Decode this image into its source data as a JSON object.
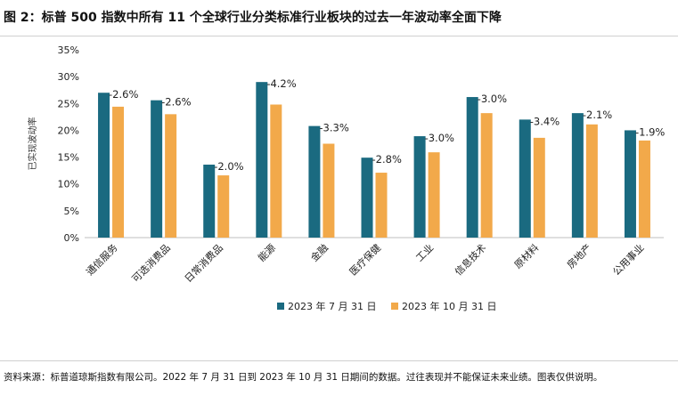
{
  "title": "图 2：标普 500 指数中所有 11 个全球行业分类标准行业板块的过去一年波动率全面下降",
  "source": "资料来源：标普道琼斯指数有限公司。2022 年 7 月 31 日到 2023 年 10 月 31 日期间的数据。过往表现并不能保证未来业绩。图表仅供说明。",
  "colors": {
    "series1": "#1a6a80",
    "series2": "#f2a94a",
    "axis": "#bfbfbf"
  },
  "chart_data": {
    "type": "bar",
    "ylabel": "已实现波动率",
    "ylim": [
      0,
      35
    ],
    "yticks": [
      0,
      5,
      10,
      15,
      20,
      25,
      30,
      35
    ],
    "ytick_labels": [
      "0%",
      "5%",
      "10%",
      "15%",
      "20%",
      "25%",
      "30%",
      "35%"
    ],
    "legend_position": "bottom",
    "grid": false,
    "categories": [
      "通信服务",
      "可选消费品",
      "日常消费品",
      "能源",
      "金融",
      "医疗保健",
      "工业",
      "信息技术",
      "原材料",
      "房地产",
      "公用事业"
    ],
    "series": [
      {
        "name": "2023 年 7 月 31 日",
        "values": [
          27.0,
          25.6,
          13.6,
          29.0,
          20.8,
          14.9,
          18.9,
          26.2,
          22.0,
          23.2,
          20.0
        ]
      },
      {
        "name": "2023 年 10 月 31 日",
        "values": [
          24.4,
          23.0,
          11.6,
          24.8,
          17.5,
          12.1,
          15.9,
          23.2,
          18.6,
          21.1,
          18.1
        ]
      }
    ],
    "data_labels": [
      "-2.6%",
      "-2.6%",
      "-2.0%",
      "-4.2%",
      "-3.3%",
      "-2.8%",
      "-3.0%",
      "-3.0%",
      "-3.4%",
      "-2.1%",
      "-1.9%"
    ]
  }
}
